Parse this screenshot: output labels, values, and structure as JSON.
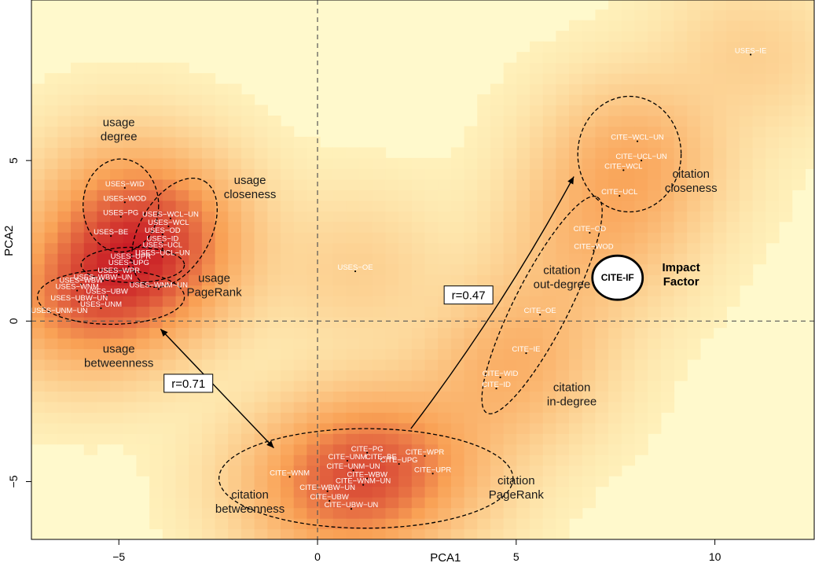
{
  "colors": {
    "background": "#fff9cc",
    "low": "#fff5c0",
    "mid": "#f9a155",
    "high": "#c81a24",
    "points": "#000000",
    "labels": "#ffffff",
    "reference_lines": "#555555"
  },
  "chart_data": {
    "type": "scatter",
    "subtype": "density-heatmap",
    "xlabel": "PCA1",
    "ylabel": "PCA2",
    "xlim": [
      -7.2,
      12.5
    ],
    "ylim": [
      -6.8,
      10.0
    ],
    "xticks": [
      {
        "value": -5,
        "label": "−5"
      },
      {
        "value": 0,
        "label": "0"
      },
      {
        "value": 5,
        "label": "5"
      },
      {
        "value": 10,
        "label": "10"
      }
    ],
    "yticks": [
      {
        "value": -5,
        "label": "−5"
      },
      {
        "value": 0,
        "label": "0"
      },
      {
        "value": 5,
        "label": "5"
      }
    ],
    "reference_lines": {
      "x": 0,
      "y": 0
    },
    "points": [
      {
        "label": "USES−IE",
        "x": 10.9,
        "y": 8.3
      },
      {
        "label": "USES−OE",
        "x": 0.95,
        "y": 1.55
      },
      {
        "label": "USES−WID",
        "x": -4.85,
        "y": 4.15
      },
      {
        "label": "USES−WOD",
        "x": -4.85,
        "y": 3.7
      },
      {
        "label": "USES−PG",
        "x": -4.95,
        "y": 3.25
      },
      {
        "label": "USES−WCL−UN",
        "x": -3.7,
        "y": 3.2
      },
      {
        "label": "USES−WCL",
        "x": -3.75,
        "y": 2.95
      },
      {
        "label": "USES−BE",
        "x": -5.2,
        "y": 2.65
      },
      {
        "label": "USES−OD",
        "x": -3.9,
        "y": 2.7
      },
      {
        "label": "USES−ID",
        "x": -3.9,
        "y": 2.45
      },
      {
        "label": "USES−UCL",
        "x": -3.9,
        "y": 2.25
      },
      {
        "label": "USES−UCL−UN",
        "x": -3.9,
        "y": 2.0
      },
      {
        "label": "USES−UPR",
        "x": -4.7,
        "y": 1.9
      },
      {
        "label": "USES−UPG",
        "x": -4.75,
        "y": 1.7
      },
      {
        "label": "USES−WPR",
        "x": -5.0,
        "y": 1.45
      },
      {
        "label": "USES−WBW−UN",
        "x": -5.4,
        "y": 1.25
      },
      {
        "label": "USES−WBW",
        "x": -5.95,
        "y": 1.15
      },
      {
        "label": "USES−WNM",
        "x": -6.05,
        "y": 0.95
      },
      {
        "label": "USES−WNM−UN",
        "x": -4.0,
        "y": 1.0
      },
      {
        "label": "USES−UBW",
        "x": -5.3,
        "y": 0.8
      },
      {
        "label": "USES−UBW−UN",
        "x": -6.0,
        "y": 0.6
      },
      {
        "label": "USES−UNM",
        "x": -5.45,
        "y": 0.4
      },
      {
        "label": "USES−UNM−UN",
        "x": -6.5,
        "y": 0.2
      },
      {
        "label": "CITE−WCL−UN",
        "x": 8.05,
        "y": 5.6
      },
      {
        "label": "CITE−UCL−UN",
        "x": 8.15,
        "y": 5.0
      },
      {
        "label": "CITE−WCL",
        "x": 7.7,
        "y": 4.7
      },
      {
        "label": "CITE−UCL",
        "x": 7.6,
        "y": 3.9
      },
      {
        "label": "CITE−OD",
        "x": 6.85,
        "y": 2.75
      },
      {
        "label": "CITE−WOD",
        "x": 6.95,
        "y": 2.2
      },
      {
        "label": "CITE−OE",
        "x": 5.6,
        "y": 0.2
      },
      {
        "label": "CITE−IE",
        "x": 5.25,
        "y": -1.0
      },
      {
        "label": "CITE−WID",
        "x": 4.6,
        "y": -1.75
      },
      {
        "label": "CITE−ID",
        "x": 4.5,
        "y": -2.1
      },
      {
        "label": "CITE−PG",
        "x": 1.25,
        "y": -4.1
      },
      {
        "label": "CITE−BE",
        "x": 1.6,
        "y": -4.35
      },
      {
        "label": "CITE−WPR",
        "x": 2.7,
        "y": -4.2
      },
      {
        "label": "CITE−UNM",
        "x": 0.75,
        "y": -4.35
      },
      {
        "label": "CITE−UPG",
        "x": 2.05,
        "y": -4.45
      },
      {
        "label": "CITE−UNM−UN",
        "x": 0.9,
        "y": -4.65
      },
      {
        "label": "CITE−UPR",
        "x": 2.9,
        "y": -4.75
      },
      {
        "label": "CITE−WNM",
        "x": -0.7,
        "y": -4.85
      },
      {
        "label": "CITE−WBW",
        "x": 1.25,
        "y": -4.9
      },
      {
        "label": "CITE−WNM−UN",
        "x": 1.15,
        "y": -5.1
      },
      {
        "label": "CITE−WBW−UN",
        "x": 0.25,
        "y": -5.3
      },
      {
        "label": "CITE−UBW",
        "x": 0.3,
        "y": -5.6
      },
      {
        "label": "CITE−UBW−UN",
        "x": 0.85,
        "y": -5.85
      }
    ],
    "groups": [
      {
        "label": "usage\ndegree",
        "cx": -4.95,
        "cy": 3.6,
        "rx": 0.95,
        "ry": 1.45,
        "angle": 0,
        "label_x": -5.0,
        "label_y": 5.85
      },
      {
        "label": "usage\ncloseness",
        "cx": -3.6,
        "cy": 2.75,
        "rx": 1.5,
        "ry": 1.1,
        "angle": 60,
        "label_x": -1.7,
        "label_y": 4.05
      },
      {
        "label": "usage\nPageRank",
        "cx": -4.65,
        "cy": 1.75,
        "rx": 1.3,
        "ry": 0.55,
        "angle": 0,
        "label_x": -2.6,
        "label_y": 1.0
      },
      {
        "label": "usage\nbetweenness",
        "cx": -5.2,
        "cy": 0.75,
        "rx": 1.85,
        "ry": 0.85,
        "angle": 0,
        "label_x": -5.0,
        "label_y": -1.2
      },
      {
        "label": "citation\ncloseness",
        "cx": 7.85,
        "cy": 5.2,
        "rx": 1.3,
        "ry": 1.8,
        "angle": 0,
        "label_x": 9.4,
        "label_y": 4.25
      },
      {
        "label": "citation\nout-degree",
        "cx": 5.65,
        "cy": 0.5,
        "rx": 3.05,
        "ry": 0.85,
        "angle": 63,
        "label_x": 6.15,
        "label_y": 1.25
      },
      {
        "label": "citation\nin-degree",
        "cx": 5.65,
        "cy": 0.5,
        "rx": 3.05,
        "ry": 0.85,
        "angle": 63,
        "label_x": 6.4,
        "label_y": -2.4
      },
      {
        "label": "citation\nbetweenness",
        "cx": 1.22,
        "cy": -4.9,
        "rx": 3.7,
        "ry": 1.55,
        "angle": 0,
        "label_x": -1.7,
        "label_y": -5.75
      },
      {
        "label": "citation\nPageRank",
        "cx": 1.22,
        "cy": -4.9,
        "rx": 3.7,
        "ry": 1.55,
        "angle": 0,
        "label_x": 5.0,
        "label_y": -5.3
      }
    ],
    "correlations": [
      {
        "label": "r=0.71",
        "from": [
          -1.1,
          -3.95
        ],
        "to": [
          -3.95,
          -0.25
        ],
        "label_x": -3.25,
        "label_y": -1.95
      },
      {
        "label": "r=0.47",
        "from": [
          2.35,
          -3.35
        ],
        "to": [
          6.45,
          4.5
        ],
        "label_x": 3.8,
        "label_y": 0.8
      }
    ],
    "highlight": {
      "label": "CITE-IF",
      "annotation": "Impact\nFactor",
      "x": 7.55,
      "y": 1.35,
      "annotation_x": 9.15,
      "annotation_y": 1.35
    }
  }
}
